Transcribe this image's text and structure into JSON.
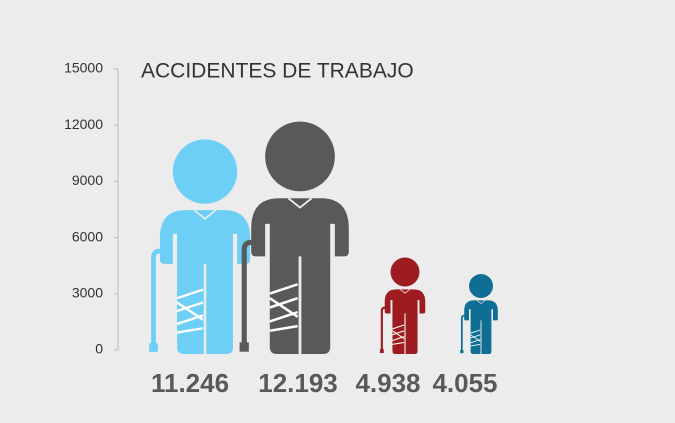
{
  "chart_data": {
    "type": "pictograph",
    "title": "ACCIDENTES DE TRABAJO",
    "values": [
      11246,
      12193,
      4938,
      4055
    ],
    "value_labels": [
      "11.246",
      "12.193",
      "4.938",
      "4.055"
    ],
    "colors": [
      "#6dcff6",
      "#58595b",
      "#9e1b20",
      "#0f6e94"
    ],
    "ylim": [
      0,
      15000
    ],
    "yticks": [
      0,
      3000,
      6000,
      9000,
      12000,
      15000
    ]
  }
}
